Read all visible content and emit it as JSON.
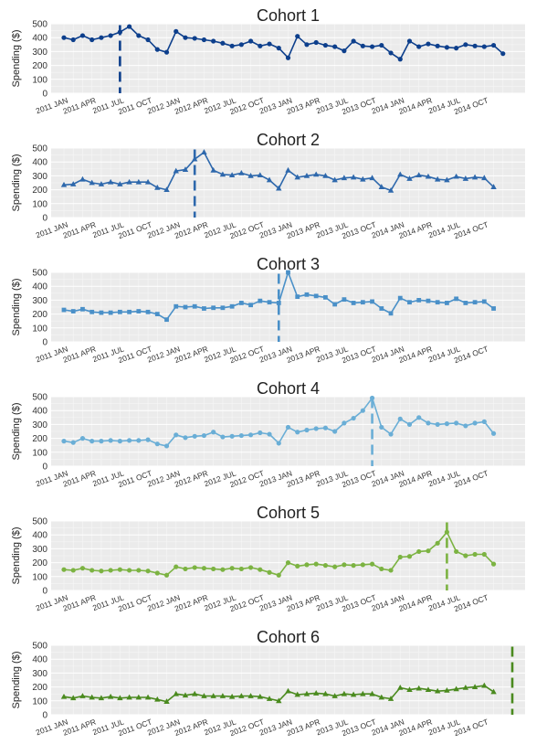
{
  "chart_data": [
    {
      "type": "line",
      "title": "Cohort 1",
      "ylabel": "Spending ($)",
      "ylim": [
        0,
        500
      ],
      "yticks": [
        "0",
        "100",
        "200",
        "300",
        "400",
        "500"
      ],
      "x_tick_labels": [
        "2011 JAN",
        "2011 APR",
        "2011 JUL",
        "2011 OCT",
        "2012 JAN",
        "2012 APR",
        "2012 JUL",
        "2012 OCT",
        "2013 JAN",
        "2013 APR",
        "2013 JUL",
        "2013 OCT",
        "2014 JAN",
        "2014 APR",
        "2014 JUL",
        "2014 OCT"
      ],
      "color": "#0d3f8c",
      "marker": "circle",
      "grid": true,
      "acquisition_month": "2011 JUL",
      "series": [
        {
          "values": [
            400,
            385,
            415,
            385,
            400,
            415,
            440,
            480,
            415,
            385,
            315,
            295,
            445,
            400,
            395,
            385,
            375,
            360,
            340,
            350,
            375,
            340,
            355,
            325,
            255,
            410,
            350,
            365,
            345,
            335,
            305,
            375,
            340,
            335,
            345,
            290,
            245,
            375,
            335,
            355,
            340,
            330,
            325,
            350,
            340,
            335,
            345,
            285
          ]
        }
      ]
    },
    {
      "type": "line",
      "title": "Cohort 2",
      "ylabel": "Spending ($)",
      "ylim": [
        0,
        500
      ],
      "yticks": [
        "0",
        "100",
        "200",
        "300",
        "400",
        "500"
      ],
      "x_tick_labels": [
        "2011 JAN",
        "2011 APR",
        "2011 JUL",
        "2011 OCT",
        "2012 JAN",
        "2012 APR",
        "2012 JUL",
        "2012 OCT",
        "2013 JAN",
        "2013 APR",
        "2013 JUL",
        "2013 OCT",
        "2014 JAN",
        "2014 APR",
        "2014 JUL",
        "2014 OCT"
      ],
      "color": "#2e68ac",
      "marker": "triangle",
      "grid": true,
      "acquisition_month": "2012 MAR",
      "series": [
        {
          "values": [
            235,
            240,
            275,
            250,
            240,
            255,
            240,
            255,
            255,
            255,
            215,
            200,
            335,
            345,
            420,
            470,
            340,
            310,
            305,
            320,
            300,
            305,
            270,
            210,
            340,
            290,
            300,
            310,
            300,
            270,
            285,
            290,
            275,
            285,
            220,
            195,
            310,
            280,
            305,
            295,
            275,
            270,
            295,
            280,
            290,
            285,
            220
          ]
        }
      ]
    },
    {
      "type": "line",
      "title": "Cohort 3",
      "ylabel": "Spending ($)",
      "ylim": [
        0,
        500
      ],
      "yticks": [
        "0",
        "100",
        "200",
        "300",
        "400",
        "500"
      ],
      "x_tick_labels": [
        "2011 JAN",
        "2011 APR",
        "2011 JUL",
        "2011 OCT",
        "2012 JAN",
        "2012 APR",
        "2012 JUL",
        "2012 OCT",
        "2013 JAN",
        "2013 APR",
        "2013 JUL",
        "2013 OCT",
        "2014 JAN",
        "2014 APR",
        "2014 JUL",
        "2014 OCT"
      ],
      "color": "#4a90c8",
      "marker": "square",
      "grid": true,
      "acquisition_month": "2012 DEC",
      "series": [
        {
          "values": [
            230,
            220,
            235,
            215,
            210,
            210,
            215,
            215,
            220,
            215,
            200,
            160,
            255,
            250,
            255,
            240,
            245,
            245,
            255,
            280,
            265,
            295,
            285,
            280,
            500,
            325,
            340,
            330,
            320,
            270,
            305,
            280,
            285,
            290,
            240,
            205,
            315,
            285,
            300,
            295,
            285,
            280,
            310,
            280,
            285,
            290,
            240
          ]
        }
      ]
    },
    {
      "type": "line",
      "title": "Cohort 4",
      "ylabel": "Spending ($)",
      "ylim": [
        0,
        500
      ],
      "yticks": [
        "0",
        "100",
        "200",
        "300",
        "400",
        "500"
      ],
      "x_tick_labels": [
        "2011 JAN",
        "2011 APR",
        "2011 JUL",
        "2011 OCT",
        "2012 JAN",
        "2012 APR",
        "2012 JUL",
        "2012 OCT",
        "2013 JAN",
        "2013 APR",
        "2013 JUL",
        "2013 OCT",
        "2014 JAN",
        "2014 APR",
        "2014 JUL",
        "2014 OCT"
      ],
      "color": "#6aaed6",
      "marker": "circle",
      "grid": true,
      "acquisition_month": "2013 OCT",
      "series": [
        {
          "values": [
            180,
            170,
            200,
            180,
            180,
            185,
            180,
            185,
            185,
            190,
            160,
            145,
            225,
            205,
            215,
            220,
            245,
            210,
            215,
            220,
            225,
            240,
            230,
            165,
            280,
            245,
            260,
            270,
            275,
            250,
            310,
            345,
            400,
            490,
            280,
            230,
            340,
            300,
            350,
            310,
            300,
            305,
            310,
            290,
            310,
            320,
            235
          ]
        }
      ]
    },
    {
      "type": "line",
      "title": "Cohort 5",
      "ylabel": "Spending ($)",
      "ylim": [
        0,
        500
      ],
      "yticks": [
        "0",
        "100",
        "200",
        "300",
        "400",
        "500"
      ],
      "x_tick_labels": [
        "2011 JAN",
        "2011 APR",
        "2011 JUL",
        "2011 OCT",
        "2012 JAN",
        "2012 APR",
        "2012 JUL",
        "2012 OCT",
        "2013 JAN",
        "2013 APR",
        "2013 JUL",
        "2013 OCT",
        "2014 JAN",
        "2014 APR",
        "2014 JUL",
        "2014 OCT"
      ],
      "color": "#7cb342",
      "marker": "circle",
      "grid": true,
      "acquisition_month": "2014 JUN",
      "series": [
        {
          "values": [
            150,
            145,
            160,
            145,
            140,
            145,
            150,
            145,
            145,
            140,
            125,
            110,
            170,
            155,
            165,
            160,
            155,
            150,
            160,
            155,
            165,
            150,
            130,
            110,
            200,
            175,
            185,
            190,
            180,
            170,
            185,
            180,
            185,
            190,
            155,
            145,
            240,
            245,
            280,
            285,
            340,
            420,
            280,
            250,
            260,
            260,
            190
          ]
        }
      ]
    },
    {
      "type": "line",
      "title": "Cohort 6",
      "ylabel": "Spending ($)",
      "ylim": [
        0,
        500
      ],
      "yticks": [
        "0",
        "100",
        "200",
        "300",
        "400",
        "500"
      ],
      "x_tick_labels": [
        "2011 JAN",
        "2011 APR",
        "2011 JUL",
        "2011 OCT",
        "2012 JAN",
        "2012 APR",
        "2012 JUL",
        "2012 OCT",
        "2013 JAN",
        "2013 APR",
        "2013 JUL",
        "2013 OCT",
        "2014 JAN",
        "2014 APR",
        "2014 JUL",
        "2014 OCT"
      ],
      "color": "#4a8a1e",
      "marker": "triangle",
      "grid": true,
      "acquisition_month": "2015 JAN",
      "series": [
        {
          "values": [
            130,
            120,
            135,
            125,
            120,
            130,
            120,
            125,
            125,
            125,
            110,
            95,
            150,
            140,
            150,
            135,
            135,
            135,
            130,
            135,
            135,
            130,
            115,
            100,
            170,
            145,
            150,
            155,
            150,
            135,
            150,
            145,
            150,
            150,
            125,
            115,
            195,
            180,
            190,
            180,
            170,
            175,
            185,
            195,
            200,
            210,
            165
          ]
        }
      ]
    }
  ]
}
